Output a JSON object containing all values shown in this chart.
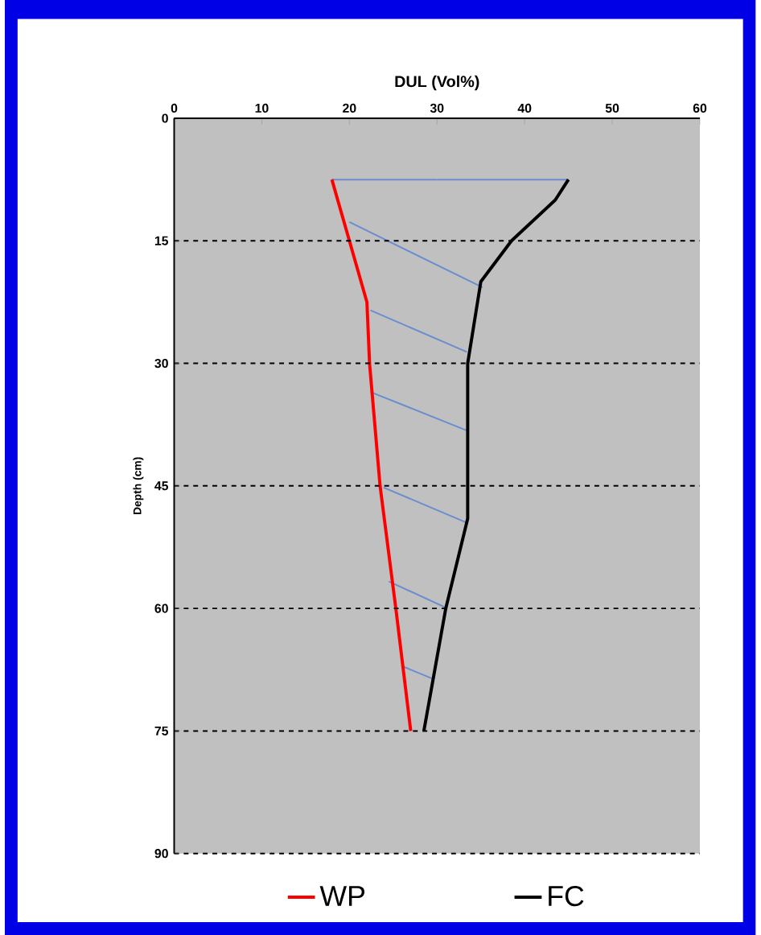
{
  "chart_data": {
    "type": "line",
    "xlabel": "DUL (Vol%)",
    "ylabel": "Depth (cm)",
    "xlim": [
      0,
      60
    ],
    "xticks": [
      0,
      10,
      20,
      30,
      40,
      50,
      60
    ],
    "ylim": [
      90,
      0
    ],
    "yticks": [
      0,
      15,
      30,
      45,
      60,
      75,
      90
    ],
    "grid": "y",
    "legend": "bottom",
    "series": [
      {
        "x": [
          18,
          30,
          null,
          20,
          35.2,
          null,
          22.4,
          33.4,
          null,
          22.4,
          33.6,
          null,
          23.9,
          33.4,
          null,
          24.5,
          31.2,
          null,
          26.1,
          29.7
        ],
        "values": [
          7.5,
          7.5,
          null,
          12.7,
          20.7,
          null,
          23.5,
          28.6,
          null,
          33.5,
          38.3,
          null,
          45.2,
          49.5,
          null,
          56.7,
          60,
          null,
          67.1,
          68.7
        ],
        "color": "#6a8cd0"
      },
      {
        "x": [
          30,
          45
        ],
        "values": [
          7.5,
          7.5
        ],
        "color": "#6a8cd0"
      },
      {
        "name": "WP",
        "x": [
          18,
          20,
          22,
          22.3,
          23.5,
          25.3,
          27
        ],
        "values": [
          7.5,
          15,
          22.5,
          30,
          45,
          60,
          75
        ],
        "color": "#ff0000"
      },
      {
        "name": "FC",
        "x": [
          45,
          43.5,
          38.5,
          35,
          33.5,
          33.5,
          31,
          28.5
        ],
        "values": [
          7.5,
          10,
          15,
          20,
          30,
          49,
          60,
          75
        ],
        "color": "#000000"
      }
    ]
  }
}
